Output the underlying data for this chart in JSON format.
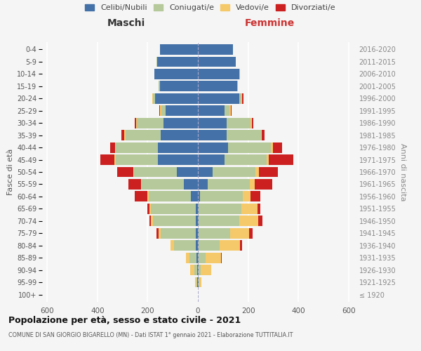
{
  "age_groups": [
    "100+",
    "95-99",
    "90-94",
    "85-89",
    "80-84",
    "75-79",
    "70-74",
    "65-69",
    "60-64",
    "55-59",
    "50-54",
    "45-49",
    "40-44",
    "35-39",
    "30-34",
    "25-29",
    "20-24",
    "15-19",
    "10-14",
    "5-9",
    "0-4"
  ],
  "birth_years": [
    "≤ 1920",
    "1921-1925",
    "1926-1930",
    "1931-1935",
    "1936-1940",
    "1941-1945",
    "1946-1950",
    "1951-1955",
    "1956-1960",
    "1961-1965",
    "1966-1970",
    "1971-1975",
    "1976-1980",
    "1981-1985",
    "1986-1990",
    "1991-1995",
    "1996-2000",
    "2001-2005",
    "2006-2010",
    "2011-2015",
    "2016-2020"
  ],
  "males_celibi": [
    0,
    2,
    2,
    5,
    8,
    8,
    8,
    8,
    28,
    55,
    85,
    160,
    158,
    148,
    138,
    128,
    170,
    152,
    172,
    162,
    152
  ],
  "males_coniugati": [
    0,
    4,
    12,
    28,
    88,
    140,
    170,
    178,
    168,
    168,
    168,
    168,
    168,
    140,
    105,
    18,
    8,
    4,
    2,
    2,
    0
  ],
  "males_vedovi": [
    0,
    4,
    18,
    14,
    14,
    8,
    8,
    8,
    4,
    4,
    4,
    4,
    4,
    4,
    4,
    4,
    4,
    0,
    0,
    0,
    0
  ],
  "males_divorziati": [
    0,
    0,
    0,
    0,
    0,
    8,
    8,
    8,
    50,
    50,
    65,
    55,
    18,
    12,
    4,
    4,
    0,
    0,
    0,
    0,
    0
  ],
  "females_nubili": [
    0,
    2,
    2,
    4,
    4,
    4,
    4,
    4,
    8,
    38,
    60,
    105,
    120,
    115,
    115,
    105,
    165,
    155,
    165,
    150,
    140
  ],
  "females_coniugate": [
    0,
    4,
    8,
    28,
    82,
    125,
    160,
    170,
    170,
    170,
    170,
    170,
    170,
    135,
    95,
    22,
    8,
    4,
    2,
    2,
    0
  ],
  "females_vedove": [
    0,
    8,
    42,
    60,
    82,
    76,
    76,
    62,
    32,
    18,
    12,
    8,
    8,
    4,
    4,
    4,
    4,
    0,
    0,
    0,
    0
  ],
  "females_divorziate": [
    0,
    0,
    0,
    4,
    8,
    12,
    18,
    12,
    38,
    70,
    76,
    96,
    38,
    12,
    8,
    4,
    4,
    0,
    0,
    0,
    0
  ],
  "color_celibi": "#4472a8",
  "color_coniugati": "#b5c99a",
  "color_vedovi": "#f5c96a",
  "color_divorziati": "#cc2020",
  "title": "Popolazione per età, sesso e stato civile - 2021",
  "subtitle": "COMUNE DI SAN GIORGIO BIGARELLO (MN) - Dati ISTAT 1° gennaio 2021 - Elaborazione TUTTITALIA.IT",
  "label_maschi": "Maschi",
  "label_femmine": "Femmine",
  "ylabel_left": "Fasce di età",
  "ylabel_right": "Anni di nascita",
  "legend_labels": [
    "Celibi/Nubili",
    "Coniugati/e",
    "Vedovi/e",
    "Divorziati/e"
  ],
  "bg_color": "#f5f5f5",
  "xlim": 620
}
